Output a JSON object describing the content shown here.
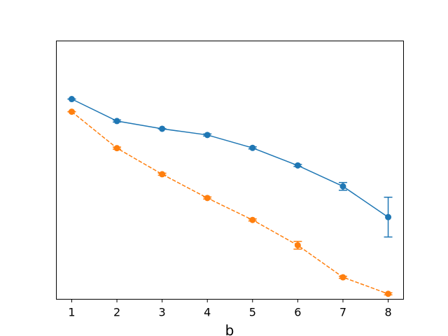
{
  "chart_data": {
    "type": "line",
    "title": "",
    "xlabel": "b",
    "ylabel": "",
    "x": [
      1,
      2,
      3,
      4,
      5,
      6,
      7,
      8
    ],
    "xlim": [
      0.66,
      8.34
    ],
    "ylim": [
      0.0,
      1.0
    ],
    "x_ticks": [
      "1",
      "2",
      "3",
      "4",
      "5",
      "6",
      "7",
      "8"
    ],
    "y_ticks_visible": false,
    "grid": false,
    "legend": "none",
    "series": [
      {
        "color": "#1f77b4",
        "linestyle": "solid",
        "marker": "circle",
        "values": [
          0.775,
          0.69,
          0.66,
          0.636,
          0.586,
          0.518,
          0.437,
          0.318
        ],
        "errors": [
          0.0,
          0.004,
          0.0,
          0.004,
          0.004,
          0.004,
          0.015,
          0.077
        ]
      },
      {
        "color": "#ff7f0e",
        "linestyle": "dashed",
        "marker": "circle",
        "values": [
          0.726,
          0.585,
          0.484,
          0.392,
          0.307,
          0.209,
          0.085,
          0.021
        ],
        "errors": [
          0.0,
          0.004,
          0.004,
          0.004,
          0.004,
          0.015,
          0.004,
          0.004
        ]
      }
    ]
  }
}
